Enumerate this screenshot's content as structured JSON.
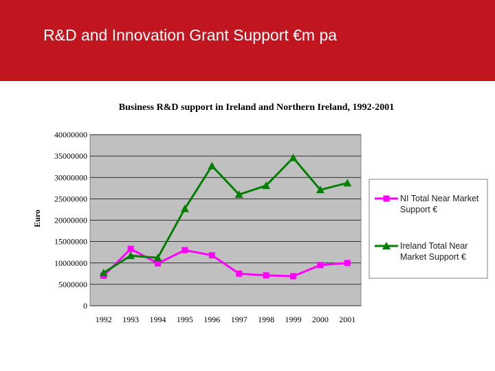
{
  "slide": {
    "title": "R&D and Innovation Grant Support €m pa"
  },
  "colors": {
    "header": "#c1161f",
    "plot_bg": "#c0c0c0",
    "ni": "#ff00ff",
    "ireland": "#007f00"
  },
  "chart_data": {
    "type": "line",
    "title": "Business R&D support in Ireland and Northern Ireland, 1992-2001",
    "xlabel": "",
    "ylabel": "Euro",
    "categories": [
      "1992",
      "1993",
      "1994",
      "1995",
      "1996",
      "1997",
      "1998",
      "1999",
      "2000",
      "2001"
    ],
    "ylim": [
      0,
      40000000
    ],
    "yticks": [
      0,
      5000000,
      10000000,
      15000000,
      20000000,
      25000000,
      30000000,
      35000000,
      40000000
    ],
    "grid": true,
    "legend_position": "right",
    "series": [
      {
        "name": "NI Total Near Market Support €",
        "legend_lines": [
          "NI Total Near Market",
          "Support €"
        ],
        "marker": "square",
        "color": "#ff00ff",
        "values": [
          7000000,
          13300000,
          9900000,
          13000000,
          11800000,
          7500000,
          7100000,
          6900000,
          9500000,
          10000000
        ]
      },
      {
        "name": "Ireland Total Near Market Support €",
        "legend_lines": [
          "Ireland Total Near",
          "Market Support €"
        ],
        "marker": "triangle",
        "color": "#007f00",
        "values": [
          7700000,
          11700000,
          11200000,
          22700000,
          32700000,
          26000000,
          28100000,
          34600000,
          27100000,
          28700000
        ]
      }
    ]
  }
}
